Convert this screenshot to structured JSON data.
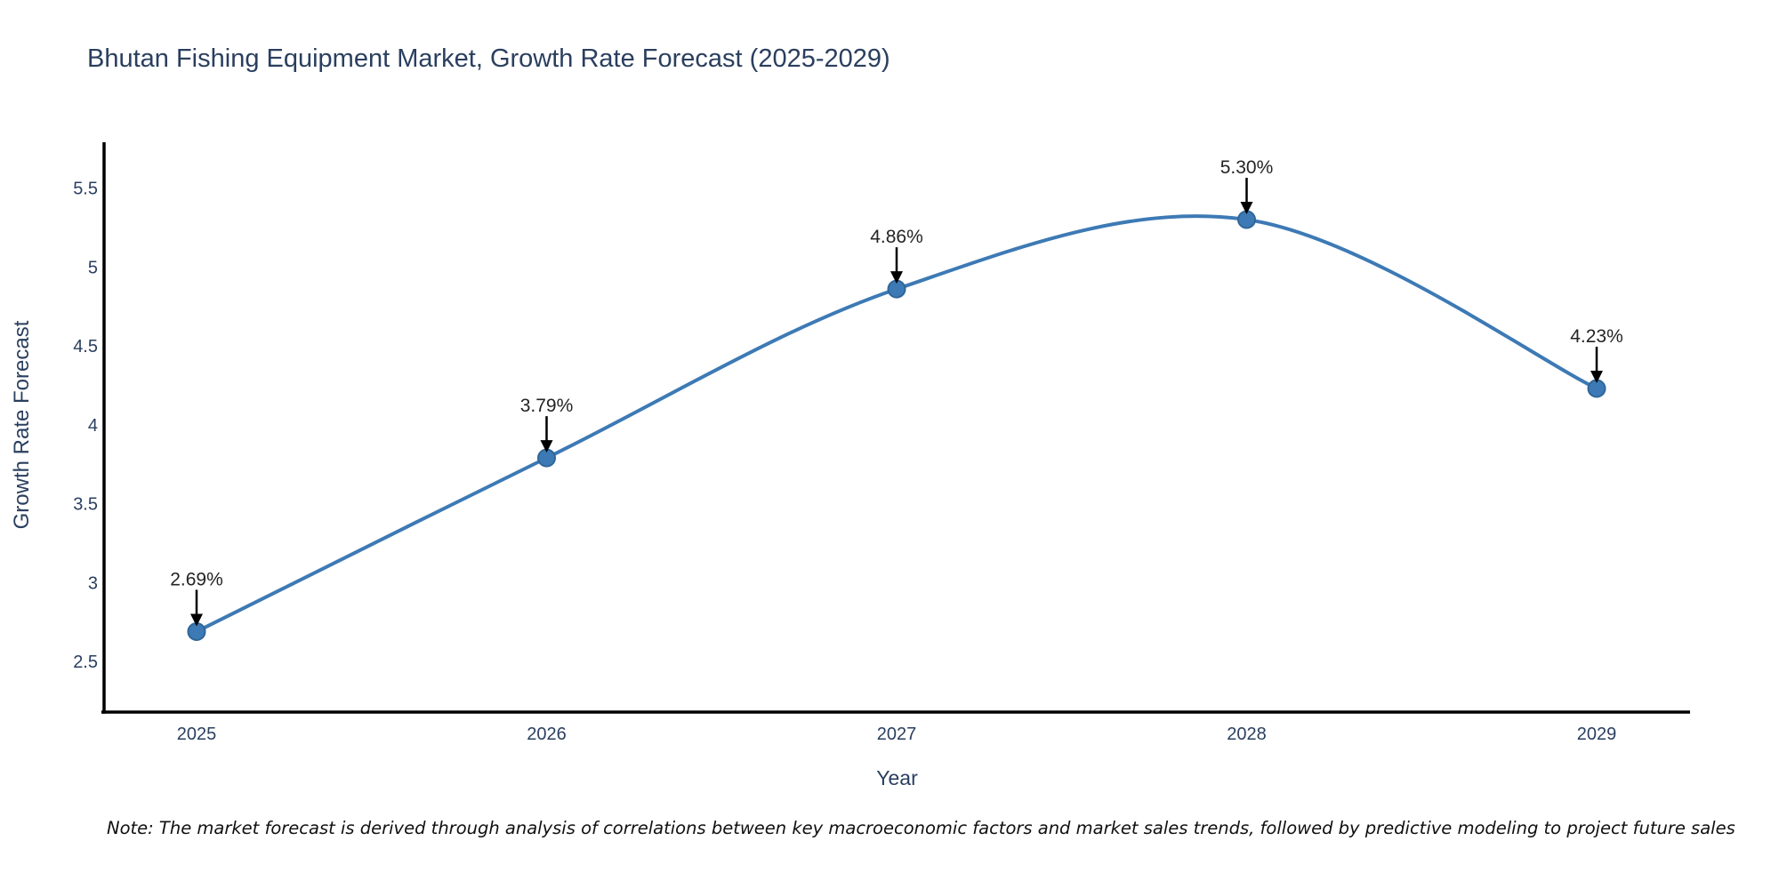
{
  "title": "Bhutan Fishing Equipment Market, Growth Rate Forecast (2025-2029)",
  "footnote": "Note: The market forecast is derived through analysis of correlations between key macroeconomic factors and market sales trends, followed by predictive modeling to project future sales",
  "chart_data": {
    "type": "line",
    "title": "Bhutan Fishing Equipment Market, Growth Rate Forecast (2025-2029)",
    "xlabel": "Year",
    "ylabel": "Growth Rate Forecast",
    "categories": [
      "2025",
      "2026",
      "2027",
      "2028",
      "2029"
    ],
    "values": [
      2.69,
      3.79,
      4.86,
      5.3,
      4.23
    ],
    "point_labels": [
      "2.69%",
      "3.79%",
      "4.86%",
      "5.30%",
      "4.23%"
    ],
    "yticks": [
      2.5,
      3,
      3.5,
      4,
      4.5,
      5,
      5.5
    ],
    "ylim": [
      2.18,
      5.79
    ],
    "grid": false,
    "legend": false,
    "line_shape": "spline",
    "colors": {
      "line": "#3d7ab5",
      "marker_fill": "#3d7ab5",
      "marker_edge": "#2f6699",
      "annotation_arrow": "#000000",
      "annotation_text": "#242424",
      "axis_spine": "#000000",
      "title_text": "#2a3f5f",
      "tick_text": "#2a3f5f"
    }
  }
}
